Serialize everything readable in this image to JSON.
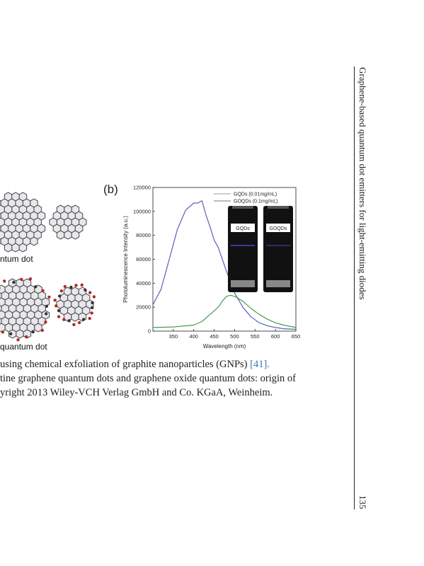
{
  "running_head": "Graphene-based quantum dot emitters for light-emitting diodes",
  "page_number": "135",
  "figure": {
    "panel_a": {
      "label_top": "ntum dot",
      "label_bottom": "quantum dot"
    },
    "panel_b_label": "(b)",
    "inset": {
      "vial_1": "GQDs",
      "vial_2": "GOQDs"
    }
  },
  "caption": {
    "line1_text": "using chemical exfoliation of graphite nanoparticles (GNPs) ",
    "line1_ref": "[41].",
    "line2": "tine graphene quantum dots and graphene oxide quantum dots: origin of",
    "line3": "yright 2013 Wiley-VCH Verlag GmbH and Co. KGaA, Weinheim."
  },
  "chart_data": {
    "type": "line",
    "xlabel": "Wavelength (nm)",
    "ylabel": "Photoluminescence Intensity (a.u.)",
    "xlim": [
      300,
      650
    ],
    "ylim": [
      0,
      120000
    ],
    "x_ticks": [
      350,
      400,
      450,
      500,
      550,
      600,
      650
    ],
    "y_ticks": [
      0,
      20000,
      40000,
      60000,
      80000,
      100000,
      120000
    ],
    "legend_position": "top-right",
    "series": [
      {
        "name": "GQDs (0.01mg/mL)",
        "color": "#5a5fb8",
        "x": [
          300,
          320,
          340,
          360,
          380,
          400,
          410,
          420,
          430,
          440,
          450,
          460,
          470,
          480,
          490,
          500,
          520,
          540,
          560,
          580,
          600,
          620,
          650
        ],
        "y": [
          22000,
          35000,
          60000,
          85000,
          101000,
          107000,
          107000,
          109000,
          97000,
          87000,
          76000,
          70000,
          60000,
          50000,
          41000,
          32000,
          20000,
          12000,
          7000,
          4500,
          3000,
          2000,
          1500
        ]
      },
      {
        "name": "GOQDs (0.1mg/mL)",
        "color": "#4a9a4a",
        "x": [
          300,
          350,
          400,
          420,
          440,
          460,
          470,
          480,
          490,
          500,
          520,
          540,
          560,
          580,
          600,
          620,
          650
        ],
        "y": [
          3000,
          3500,
          5000,
          8000,
          14000,
          20000,
          25000,
          29000,
          30000,
          29000,
          25000,
          19000,
          14000,
          10000,
          7000,
          5000,
          3000
        ]
      }
    ]
  }
}
